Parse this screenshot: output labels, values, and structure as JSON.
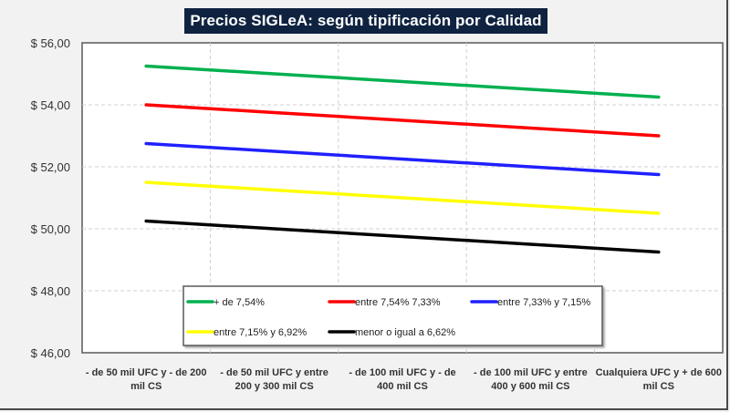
{
  "chart_data": {
    "type": "line",
    "title": "Precios SIGLeA: según tipificación por Calidad",
    "xlabel": "",
    "ylabel": "",
    "ylim": [
      46,
      56
    ],
    "yticks": [
      46,
      48,
      50,
      52,
      54,
      56
    ],
    "ytick_labels": [
      "$ 46,00",
      "$ 48,00",
      "$ 50,00",
      "$ 52,00",
      "$ 54,00",
      "$ 56,00"
    ],
    "grid": true,
    "legend_position": "bottom-center-inside",
    "categories": [
      [
        "- de 50 mil UFC y - de 200",
        "mil CS"
      ],
      [
        "- de 50 mil UFC y entre",
        "200 y 300 mil CS"
      ],
      [
        "- de 100 mil UFC y - de",
        "400 mil CS"
      ],
      [
        "- de 100 mil UFC y entre",
        "400 y 600 mil CS"
      ],
      [
        "Cualquiera UFC y + de 600",
        "mil CS"
      ]
    ],
    "series": [
      {
        "name": "+ de 7,54%",
        "color": "#00b050",
        "values": [
          55.25,
          55.0,
          54.75,
          54.5,
          54.25
        ]
      },
      {
        "name": "entre 7,54% 7,33%",
        "color": "#ff0000",
        "values": [
          54.0,
          53.75,
          53.5,
          53.25,
          53.0
        ]
      },
      {
        "name": "entre 7,33% y 7,15%",
        "color": "#2020ff",
        "values": [
          52.75,
          52.5,
          52.25,
          52.0,
          51.75
        ]
      },
      {
        "name": "entre 7,15% y 6,92%",
        "color": "#ffff00",
        "values": [
          51.5,
          51.25,
          51.0,
          50.75,
          50.5
        ]
      },
      {
        "name": "menor o igual a 6,62%",
        "color": "#000000",
        "values": [
          50.25,
          50.0,
          49.75,
          49.5,
          49.25
        ]
      }
    ]
  }
}
